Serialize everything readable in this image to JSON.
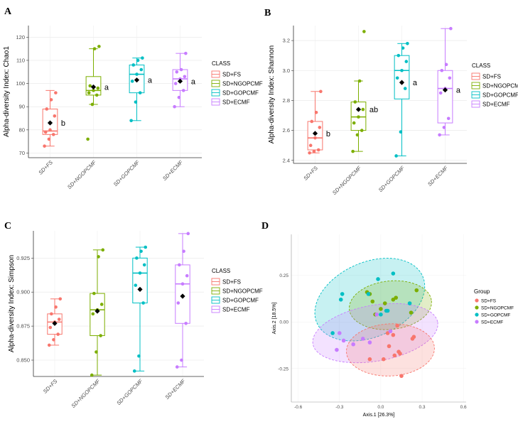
{
  "chart_data": [
    {
      "type": "box",
      "panel_label": "A",
      "ylabel": "Alpha-diversity Index: Chao1",
      "ylim": [
        68,
        125
      ],
      "yticks": [
        70,
        80,
        90,
        100,
        110,
        120
      ],
      "ytick_labels": [
        "70",
        "80",
        "90",
        "100",
        "110",
        "120"
      ],
      "categories": [
        "SD+FS",
        "SD+NGOPCMF",
        "SD+GOPCMF",
        "SD+ECMF"
      ],
      "colors": [
        "#F8766D",
        "#7CAE00",
        "#00BFC4",
        "#C77CFF"
      ],
      "boxes": [
        {
          "q1": 78,
          "median": 79.5,
          "q3": 89,
          "low": 73,
          "high": 97,
          "mean": 83,
          "label": "b",
          "points": [
            73,
            76,
            78,
            79,
            80,
            86,
            89,
            93,
            96
          ]
        },
        {
          "q1": 95,
          "median": 97,
          "q3": 103,
          "low": 91,
          "high": 115,
          "mean": 98.5,
          "label": "a",
          "points": [
            76,
            91,
            95,
            96,
            97,
            98,
            99,
            115,
            116
          ]
        },
        {
          "q1": 96,
          "median": 104,
          "q3": 108,
          "low": 84,
          "high": 111,
          "mean": 101.5,
          "label": "a",
          "points": [
            84,
            92,
            96,
            101,
            104,
            106,
            108,
            110,
            111
          ]
        },
        {
          "q1": 97,
          "median": 102,
          "q3": 106,
          "low": 90,
          "high": 113,
          "mean": 101,
          "label": "a",
          "points": [
            90,
            94,
            97,
            100,
            102,
            103,
            105,
            106,
            113
          ]
        }
      ],
      "legend_title": "CLASS",
      "legend": [
        "SD+FS",
        "SD+NGOPCMF",
        "SD+GOPCMF",
        "SD+ECMF"
      ]
    },
    {
      "type": "box",
      "panel_label": "B",
      "ylabel": "Alpha-diversity Index: Shannon",
      "ylim": [
        2.38,
        3.3
      ],
      "yticks": [
        2.4,
        2.6,
        2.8,
        3.0,
        3.2
      ],
      "ytick_labels": [
        "2.4",
        "2.6",
        "2.8",
        "3.0",
        "3.2"
      ],
      "categories": [
        "SD+FS",
        "SD+NGOPCMF",
        "SD+GOPCMF",
        "SD+ECMF"
      ],
      "colors": [
        "#F8766D",
        "#7CAE00",
        "#00BFC4",
        "#C77CFF"
      ],
      "boxes": [
        {
          "q1": 2.47,
          "median": 2.55,
          "q3": 2.66,
          "low": 2.45,
          "high": 2.86,
          "mean": 2.58,
          "label": "b",
          "points": [
            2.45,
            2.46,
            2.47,
            2.5,
            2.55,
            2.62,
            2.66,
            2.72,
            2.86
          ]
        },
        {
          "q1": 2.6,
          "median": 2.69,
          "q3": 2.79,
          "low": 2.46,
          "high": 2.93,
          "mean": 2.74,
          "label": "ab",
          "points": [
            2.46,
            2.57,
            2.6,
            2.65,
            2.69,
            2.74,
            2.79,
            2.93,
            3.26
          ]
        },
        {
          "q1": 2.81,
          "median": 3.0,
          "q3": 3.1,
          "low": 2.43,
          "high": 3.18,
          "mean": 2.92,
          "label": "a",
          "points": [
            2.43,
            2.59,
            2.88,
            2.95,
            3.0,
            3.06,
            3.1,
            3.15,
            3.18
          ]
        },
        {
          "q1": 2.65,
          "median": 2.88,
          "q3": 3.0,
          "low": 2.57,
          "high": 3.28,
          "mean": 2.87,
          "label": "a",
          "points": [
            2.57,
            2.62,
            2.68,
            2.85,
            2.88,
            2.95,
            3.0,
            3.04,
            3.28
          ]
        }
      ],
      "legend_title": "CLASS",
      "legend": [
        "SD+FS",
        "SD+NGOPCMF",
        "SD+GOPCMF",
        "SD+ECMF"
      ]
    },
    {
      "type": "box",
      "panel_label": "C",
      "ylabel": "Alpha-diversity Index: Simpson",
      "ylim": [
        0.838,
        0.945
      ],
      "yticks": [
        0.85,
        0.875,
        0.9,
        0.925
      ],
      "ytick_labels": [
        "0.850",
        "0.875",
        "0.900",
        "0.925"
      ],
      "categories": [
        "SD+FS",
        "SD+NGOPCMF",
        "SD+GOPCMF",
        "SD+ECMF"
      ],
      "colors": [
        "#F8766D",
        "#7CAE00",
        "#00BFC4",
        "#C77CFF"
      ],
      "boxes": [
        {
          "q1": 0.869,
          "median": 0.878,
          "q3": 0.884,
          "low": 0.861,
          "high": 0.895,
          "mean": 0.877,
          "label": "",
          "points": [
            0.861,
            0.865,
            0.869,
            0.874,
            0.878,
            0.88,
            0.884,
            0.889,
            0.895
          ]
        },
        {
          "q1": 0.868,
          "median": 0.887,
          "q3": 0.899,
          "low": 0.839,
          "high": 0.931,
          "mean": 0.886,
          "label": "",
          "points": [
            0.839,
            0.856,
            0.868,
            0.884,
            0.887,
            0.891,
            0.899,
            0.926,
            0.931
          ]
        },
        {
          "q1": 0.892,
          "median": 0.914,
          "q3": 0.925,
          "low": 0.842,
          "high": 0.933,
          "mean": 0.902,
          "label": "",
          "points": [
            0.842,
            0.853,
            0.892,
            0.905,
            0.914,
            0.92,
            0.925,
            0.93,
            0.933
          ]
        },
        {
          "q1": 0.877,
          "median": 0.906,
          "q3": 0.92,
          "low": 0.845,
          "high": 0.943,
          "mean": 0.897,
          "label": "",
          "points": [
            0.845,
            0.85,
            0.877,
            0.892,
            0.906,
            0.912,
            0.92,
            0.93,
            0.943
          ]
        }
      ],
      "legend_title": "CLASS",
      "legend": [
        "SD+FS",
        "SD+NGOPCMF",
        "SD+GOPCMF",
        "SD+ECMF"
      ]
    },
    {
      "type": "scatter",
      "panel_label": "D",
      "xlabel": "Axis.1  [26.3%]",
      "ylabel": "Axis.2  [18.5%]",
      "xlim": [
        -0.65,
        0.62
      ],
      "ylim": [
        -0.43,
        0.47
      ],
      "xticks": [
        -0.6,
        -0.3,
        0.0,
        0.3,
        0.6
      ],
      "xtick_labels": [
        "-0.6",
        "-0.3",
        "0.0",
        "0.3",
        "0.6"
      ],
      "yticks": [
        -0.25,
        0.0,
        0.25
      ],
      "ytick_labels": [
        "-0.25",
        "0.00",
        "0.25"
      ],
      "legend_title": "Group",
      "series": [
        {
          "name": "SD+FS",
          "color": "#F8766D",
          "x": [
            -0.08,
            0.02,
            0.06,
            0.1,
            0.13,
            0.14,
            0.15,
            0.12,
            0.05,
            0.09,
            0.23,
            0.24
          ],
          "y": [
            -0.2,
            -0.2,
            -0.13,
            -0.18,
            -0.16,
            -0.17,
            -0.29,
            -0.02,
            -0.06,
            -0.07,
            -0.09,
            -0.08
          ]
        },
        {
          "name": "SD+NGOPCMF",
          "color": "#7CAE00",
          "x": [
            -0.1,
            -0.08,
            -0.06,
            -0.04,
            0.0,
            0.03,
            0.09,
            0.11,
            0.22,
            0.26
          ],
          "y": [
            0.16,
            0.15,
            0.11,
            0.04,
            0.07,
            0.1,
            0.12,
            0.13,
            0.05,
            0.17
          ]
        },
        {
          "name": "SD+GOPCMF",
          "color": "#00BFC4",
          "x": [
            -0.35,
            -0.29,
            -0.28,
            -0.09,
            -0.02,
            0.0,
            0.04,
            0.09,
            0.21,
            0.05
          ],
          "y": [
            -0.06,
            0.12,
            0.15,
            0.15,
            0.23,
            0.04,
            0.06,
            0.26,
            0.1,
            0.06
          ]
        },
        {
          "name": "SD+ECMF",
          "color": "#C77CFF",
          "x": [
            -0.32,
            -0.3,
            -0.27,
            -0.2,
            -0.13,
            -0.08,
            -0.03,
            0.07
          ],
          "y": [
            -0.15,
            -0.06,
            -0.1,
            -0.12,
            -0.09,
            -0.11,
            0.04,
            -0.05
          ]
        }
      ],
      "ellipses": [
        {
          "group": "SD+GOPCMF",
          "cx": -0.08,
          "cy": 0.12,
          "rx": 0.42,
          "ry": 0.2,
          "angle": 24
        },
        {
          "group": "SD+NGOPCMF",
          "cx": 0.07,
          "cy": 0.09,
          "rx": 0.3,
          "ry": 0.13,
          "angle": 6
        },
        {
          "group": "SD+ECMF",
          "cx": -0.04,
          "cy": -0.06,
          "rx": 0.46,
          "ry": 0.15,
          "angle": 10
        },
        {
          "group": "SD+FS",
          "cx": 0.07,
          "cy": -0.15,
          "rx": 0.32,
          "ry": 0.14,
          "angle": 3
        }
      ]
    }
  ]
}
